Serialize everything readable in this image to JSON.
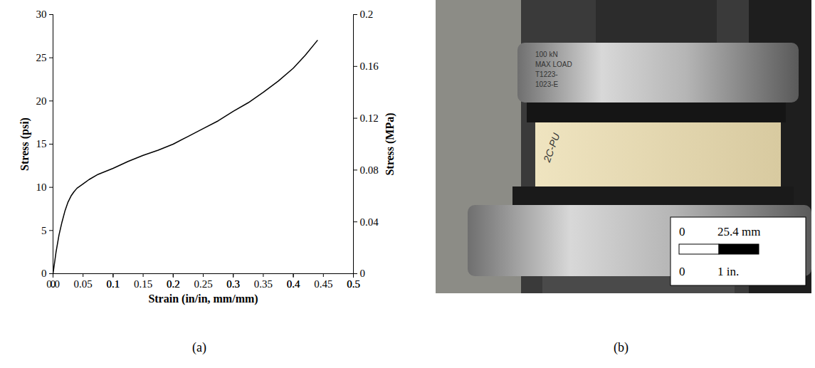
{
  "chart_data": {
    "type": "line",
    "x": [
      0,
      0.005,
      0.01,
      0.015,
      0.02,
      0.025,
      0.03,
      0.035,
      0.04,
      0.05,
      0.06,
      0.075,
      0.1,
      0.125,
      0.15,
      0.175,
      0.2,
      0.225,
      0.25,
      0.275,
      0.3,
      0.325,
      0.35,
      0.375,
      0.4,
      0.42,
      0.44
    ],
    "values": [
      0,
      2.5,
      4.5,
      6,
      7.3,
      8.3,
      9,
      9.5,
      9.9,
      10.4,
      10.9,
      11.5,
      12.2,
      13,
      13.7,
      14.3,
      15,
      15.9,
      16.8,
      17.7,
      18.8,
      19.8,
      21,
      22.3,
      23.8,
      25.3,
      27
    ],
    "color": "#000000",
    "x_label": "Strain (in/in, mm/mm)",
    "y_label": "Stress (psi)",
    "y2_label": "Stress (MPa)",
    "xlim": [
      0,
      0.5
    ],
    "xticks": [
      0,
      0.05,
      0.1,
      0.15,
      0.2,
      0.25,
      0.3,
      0.35,
      0.4,
      0.45,
      0.5
    ],
    "ylim": [
      0,
      30
    ],
    "yticks": [
      0,
      5,
      10,
      15,
      20,
      25,
      30
    ],
    "y2lim": [
      0,
      0.2
    ],
    "y2ticks": [
      0,
      0.04,
      0.08,
      0.12,
      0.16,
      0.2
    ],
    "grid": false
  },
  "photo": {
    "platen_label": [
      "100 kN",
      "MAX LOAD",
      "T1223-",
      "1023-E"
    ],
    "specimen_label": "2C-PU",
    "scale_bar": {
      "metric": [
        "0",
        "25.4 mm"
      ],
      "imperial": [
        "0",
        "1 in."
      ]
    }
  },
  "panel_labels": [
    "(a)",
    "(b)"
  ]
}
